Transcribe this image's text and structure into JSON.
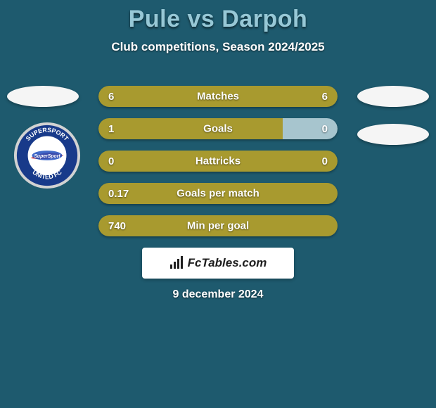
{
  "background_color": "#1e5a6e",
  "title_color": "#97c8d6",
  "title": "Pule vs Darpoh",
  "subtitle": "Club competitions, Season 2024/2025",
  "bar_colors": {
    "player1_fill": "#a89a2f",
    "player2_fill": "#a7c5ce",
    "highlight_fill": "#a89a2f"
  },
  "fctables": {
    "box_bg": "#ffffff",
    "brand_prefix": "Fc",
    "brand_suffix": "Tables.com",
    "icon_color": "#1e1e1e"
  },
  "date": "9 december 2024",
  "oval_bg": "#f5f5f5",
  "club_badge": {
    "outer_color": "#d2d2d2",
    "ring_color": "#183a8a",
    "center_color": "#ffffff",
    "text_top": "SUPERSPORT",
    "text_bottom": "UNITED FC",
    "text_color": "#ffffff",
    "swoosh_color": "#d43d3d"
  },
  "stats": [
    {
      "label": "Matches",
      "p1_value": "6",
      "p2_value": "6",
      "p1_pct": 50,
      "p2_pct": 50,
      "p1_color": "#a89a2f",
      "p2_color": "#a89a2f"
    },
    {
      "label": "Goals",
      "p1_value": "1",
      "p2_value": "0",
      "p1_pct": 77,
      "p2_pct": 23,
      "p1_color": "#a89a2f",
      "p2_color": "#a7c5ce"
    },
    {
      "label": "Hattricks",
      "p1_value": "0",
      "p2_value": "0",
      "p1_pct": 50,
      "p2_pct": 50,
      "p1_color": "#a89a2f",
      "p2_color": "#a89a2f"
    },
    {
      "label": "Goals per match",
      "p1_value": "0.17",
      "p2_value": "",
      "p1_pct": 100,
      "p2_pct": 0,
      "p1_color": "#a89a2f",
      "p2_color": "#a89a2f"
    },
    {
      "label": "Min per goal",
      "p1_value": "740",
      "p2_value": "",
      "p1_pct": 100,
      "p2_pct": 0,
      "p1_color": "#a89a2f",
      "p2_color": "#a89a2f"
    }
  ]
}
